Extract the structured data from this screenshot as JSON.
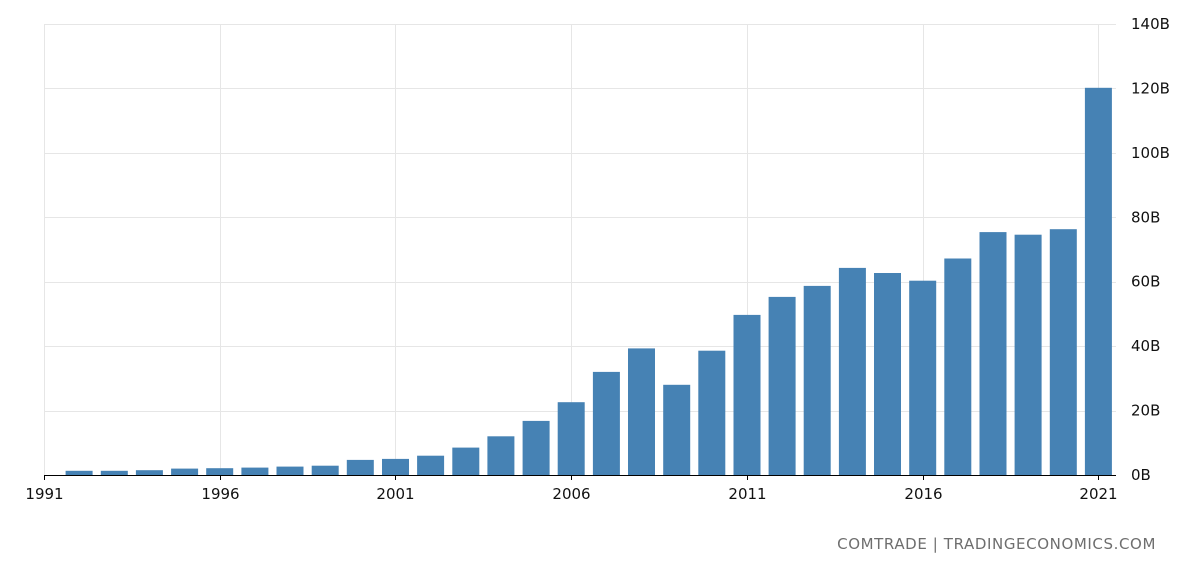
{
  "chart_data": {
    "type": "bar",
    "title": "",
    "xlabel": "",
    "ylabel": "",
    "x": [
      1992,
      1993,
      1994,
      1995,
      1996,
      1997,
      1998,
      1999,
      2000,
      2001,
      2002,
      2003,
      2004,
      2005,
      2006,
      2007,
      2008,
      2009,
      2010,
      2011,
      2012,
      2013,
      2014,
      2015,
      2016,
      2017,
      2018,
      2019,
      2020,
      2021
    ],
    "values": [
      1.3,
      1.3,
      1.5,
      2.0,
      2.1,
      2.3,
      2.6,
      2.9,
      4.7,
      5.0,
      6.0,
      8.5,
      12.0,
      16.8,
      22.6,
      32.0,
      39.3,
      28.0,
      38.6,
      49.7,
      55.3,
      58.7,
      64.3,
      62.7,
      60.3,
      67.2,
      75.4,
      74.6,
      76.3,
      120.2
    ],
    "xlim": [
      1991,
      2021.5
    ],
    "ylim": [
      0,
      140
    ],
    "x_ticks": [
      1991,
      1996,
      2001,
      2006,
      2011,
      2016,
      2021
    ],
    "x_tick_labels": [
      "1991",
      "1996",
      "2001",
      "2006",
      "2011",
      "2016",
      "2021"
    ],
    "y_ticks": [
      0,
      20,
      40,
      60,
      80,
      100,
      120,
      140
    ],
    "y_tick_labels": [
      "0B",
      "20B",
      "40B",
      "60B",
      "80B",
      "100B",
      "120B",
      "140B"
    ],
    "y_axis_position": "right",
    "grid": true,
    "legend": "none",
    "colors": {
      "bar": "#4682b4",
      "grid": "#e6e6e6",
      "axis": "#000000"
    }
  },
  "source": "COMTRADE | TRADINGECONOMICS.COM"
}
